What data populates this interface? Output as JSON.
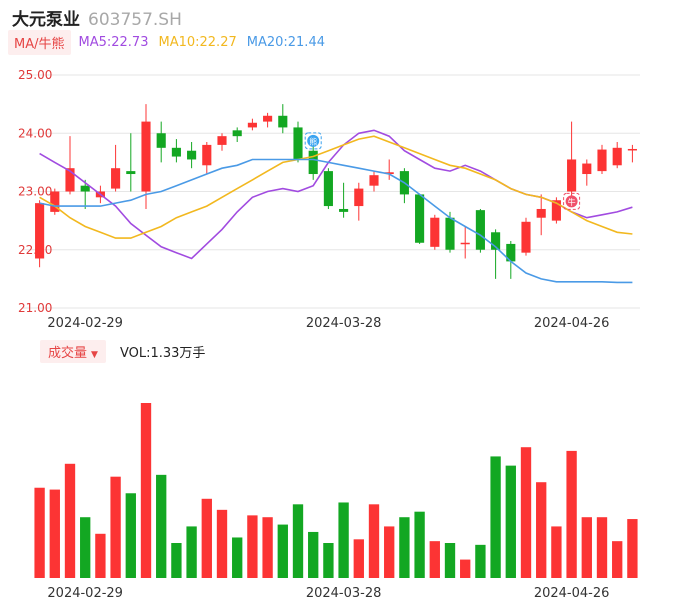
{
  "header": {
    "name": "大元泵业",
    "code": "603757.SH"
  },
  "ma_legend": {
    "tag": "MA/牛熊",
    "items": [
      {
        "label": "MA5:22.73",
        "color": "#a14be0"
      },
      {
        "label": "MA10:22.27",
        "color": "#f2b81f"
      },
      {
        "label": "MA20:21.44",
        "color": "#4a9ae6"
      }
    ]
  },
  "volume_legend": {
    "tag": "成交量",
    "value": "VOL:1.33万手"
  },
  "colors": {
    "up": "#fc3434",
    "down": "#13a722",
    "grid": "#e6e6e6",
    "axis_text": "#e03a3a"
  },
  "markers": [
    {
      "label": "熊",
      "index": 18,
      "color": "#3aa3f0"
    },
    {
      "label": "牛",
      "index": 35,
      "color": "#f0506a"
    }
  ],
  "chart_data": {
    "type": "candlestick",
    "price_ticks": [
      "25.00",
      "24.00",
      "23.00",
      "22.00",
      "21.00"
    ],
    "ylim": [
      21.0,
      25.0
    ],
    "x_tick_labels": [
      {
        "label": "2024-02-29",
        "index": 3
      },
      {
        "label": "2024-03-28",
        "index": 20
      },
      {
        "label": "2024-04-26",
        "index": 35
      }
    ],
    "candles": [
      {
        "o": 21.85,
        "c": 22.8,
        "h": 22.85,
        "l": 21.7
      },
      {
        "o": 22.65,
        "c": 23.0,
        "h": 23.05,
        "l": 22.6
      },
      {
        "o": 23.0,
        "c": 23.4,
        "h": 23.95,
        "l": 22.95
      },
      {
        "o": 23.1,
        "c": 23.0,
        "h": 23.2,
        "l": 22.7
      },
      {
        "o": 22.9,
        "c": 23.0,
        "h": 23.1,
        "l": 22.8
      },
      {
        "o": 23.05,
        "c": 23.4,
        "h": 23.8,
        "l": 23.0
      },
      {
        "o": 23.35,
        "c": 23.3,
        "h": 24.0,
        "l": 23.0
      },
      {
        "o": 23.0,
        "c": 24.2,
        "h": 24.5,
        "l": 22.7
      },
      {
        "o": 24.0,
        "c": 23.75,
        "h": 24.2,
        "l": 23.5
      },
      {
        "o": 23.75,
        "c": 23.6,
        "h": 23.9,
        "l": 23.5
      },
      {
        "o": 23.7,
        "c": 23.55,
        "h": 23.85,
        "l": 23.4
      },
      {
        "o": 23.45,
        "c": 23.8,
        "h": 23.85,
        "l": 23.3
      },
      {
        "o": 23.8,
        "c": 23.95,
        "h": 24.0,
        "l": 23.7
      },
      {
        "o": 24.05,
        "c": 23.95,
        "h": 24.1,
        "l": 23.85
      },
      {
        "o": 24.1,
        "c": 24.18,
        "h": 24.25,
        "l": 24.05
      },
      {
        "o": 24.2,
        "c": 24.3,
        "h": 24.35,
        "l": 24.1
      },
      {
        "o": 24.3,
        "c": 24.1,
        "h": 24.5,
        "l": 24.0
      },
      {
        "o": 24.1,
        "c": 23.55,
        "h": 24.2,
        "l": 23.5
      },
      {
        "o": 23.7,
        "c": 23.3,
        "h": 23.8,
        "l": 23.2
      },
      {
        "o": 23.35,
        "c": 22.75,
        "h": 23.4,
        "l": 22.7
      },
      {
        "o": 22.7,
        "c": 22.65,
        "h": 23.15,
        "l": 22.55
      },
      {
        "o": 22.75,
        "c": 23.05,
        "h": 23.15,
        "l": 22.5
      },
      {
        "o": 23.1,
        "c": 23.28,
        "h": 23.35,
        "l": 23.0
      },
      {
        "o": 23.3,
        "c": 23.33,
        "h": 23.55,
        "l": 23.2
      },
      {
        "o": 23.35,
        "c": 22.95,
        "h": 23.4,
        "l": 22.8
      },
      {
        "o": 22.95,
        "c": 22.12,
        "h": 22.95,
        "l": 22.1
      },
      {
        "o": 22.05,
        "c": 22.55,
        "h": 22.6,
        "l": 22.0
      },
      {
        "o": 22.55,
        "c": 22.0,
        "h": 22.65,
        "l": 21.95
      },
      {
        "o": 22.1,
        "c": 22.12,
        "h": 22.4,
        "l": 21.85
      },
      {
        "o": 22.68,
        "c": 22.0,
        "h": 22.7,
        "l": 21.95
      },
      {
        "o": 22.3,
        "c": 22.0,
        "h": 22.35,
        "l": 21.5
      },
      {
        "o": 22.1,
        "c": 21.8,
        "h": 22.15,
        "l": 21.5
      },
      {
        "o": 21.95,
        "c": 22.48,
        "h": 22.55,
        "l": 21.9
      },
      {
        "o": 22.55,
        "c": 22.7,
        "h": 22.95,
        "l": 22.25
      },
      {
        "o": 22.5,
        "c": 22.85,
        "h": 22.9,
        "l": 22.45
      },
      {
        "o": 23.0,
        "c": 23.55,
        "h": 24.2,
        "l": 22.9
      },
      {
        "o": 23.3,
        "c": 23.48,
        "h": 23.55,
        "l": 23.1
      },
      {
        "o": 23.35,
        "c": 23.72,
        "h": 23.8,
        "l": 23.3
      },
      {
        "o": 23.45,
        "c": 23.75,
        "h": 23.85,
        "l": 23.4
      },
      {
        "o": 23.72,
        "c": 23.73,
        "h": 23.8,
        "l": 23.5
      }
    ],
    "ma5": [
      23.65,
      23.5,
      23.35,
      23.15,
      22.95,
      22.75,
      22.45,
      22.25,
      22.05,
      21.95,
      21.85,
      22.1,
      22.35,
      22.65,
      22.9,
      23.0,
      23.05,
      23.0,
      23.1,
      23.5,
      23.8,
      24.0,
      24.05,
      23.95,
      23.7,
      23.55,
      23.4,
      23.35,
      23.45,
      23.35,
      23.2,
      23.05,
      22.95,
      22.9,
      22.8,
      22.65,
      22.55,
      22.6,
      22.65,
      22.73
    ],
    "ma10": [
      22.9,
      22.75,
      22.55,
      22.4,
      22.3,
      22.2,
      22.2,
      22.3,
      22.4,
      22.55,
      22.65,
      22.75,
      22.9,
      23.05,
      23.2,
      23.35,
      23.5,
      23.55,
      23.6,
      23.7,
      23.8,
      23.9,
      23.95,
      23.85,
      23.75,
      23.65,
      23.55,
      23.45,
      23.4,
      23.3,
      23.2,
      23.05,
      22.95,
      22.9,
      22.8,
      22.65,
      22.5,
      22.4,
      22.3,
      22.27
    ],
    "ma20": [
      22.8,
      22.75,
      22.75,
      22.75,
      22.75,
      22.8,
      22.85,
      22.95,
      23.0,
      23.1,
      23.2,
      23.3,
      23.4,
      23.45,
      23.55,
      23.55,
      23.55,
      23.55,
      23.55,
      23.5,
      23.45,
      23.4,
      23.35,
      23.3,
      23.15,
      22.95,
      22.75,
      22.55,
      22.4,
      22.25,
      22.05,
      21.8,
      21.6,
      21.5,
      21.45,
      21.45,
      21.45,
      21.45,
      21.44,
      21.44
    ],
    "volume": [
      49,
      48,
      62,
      33,
      24,
      55,
      46,
      95,
      56,
      19,
      28,
      43,
      37,
      22,
      34,
      33,
      29,
      40,
      25,
      19,
      41,
      21,
      40,
      28,
      33,
      36,
      20,
      19,
      10,
      18,
      66,
      61,
      71,
      52,
      28,
      69,
      33,
      33,
      20,
      32
    ],
    "volume_max": 95
  }
}
